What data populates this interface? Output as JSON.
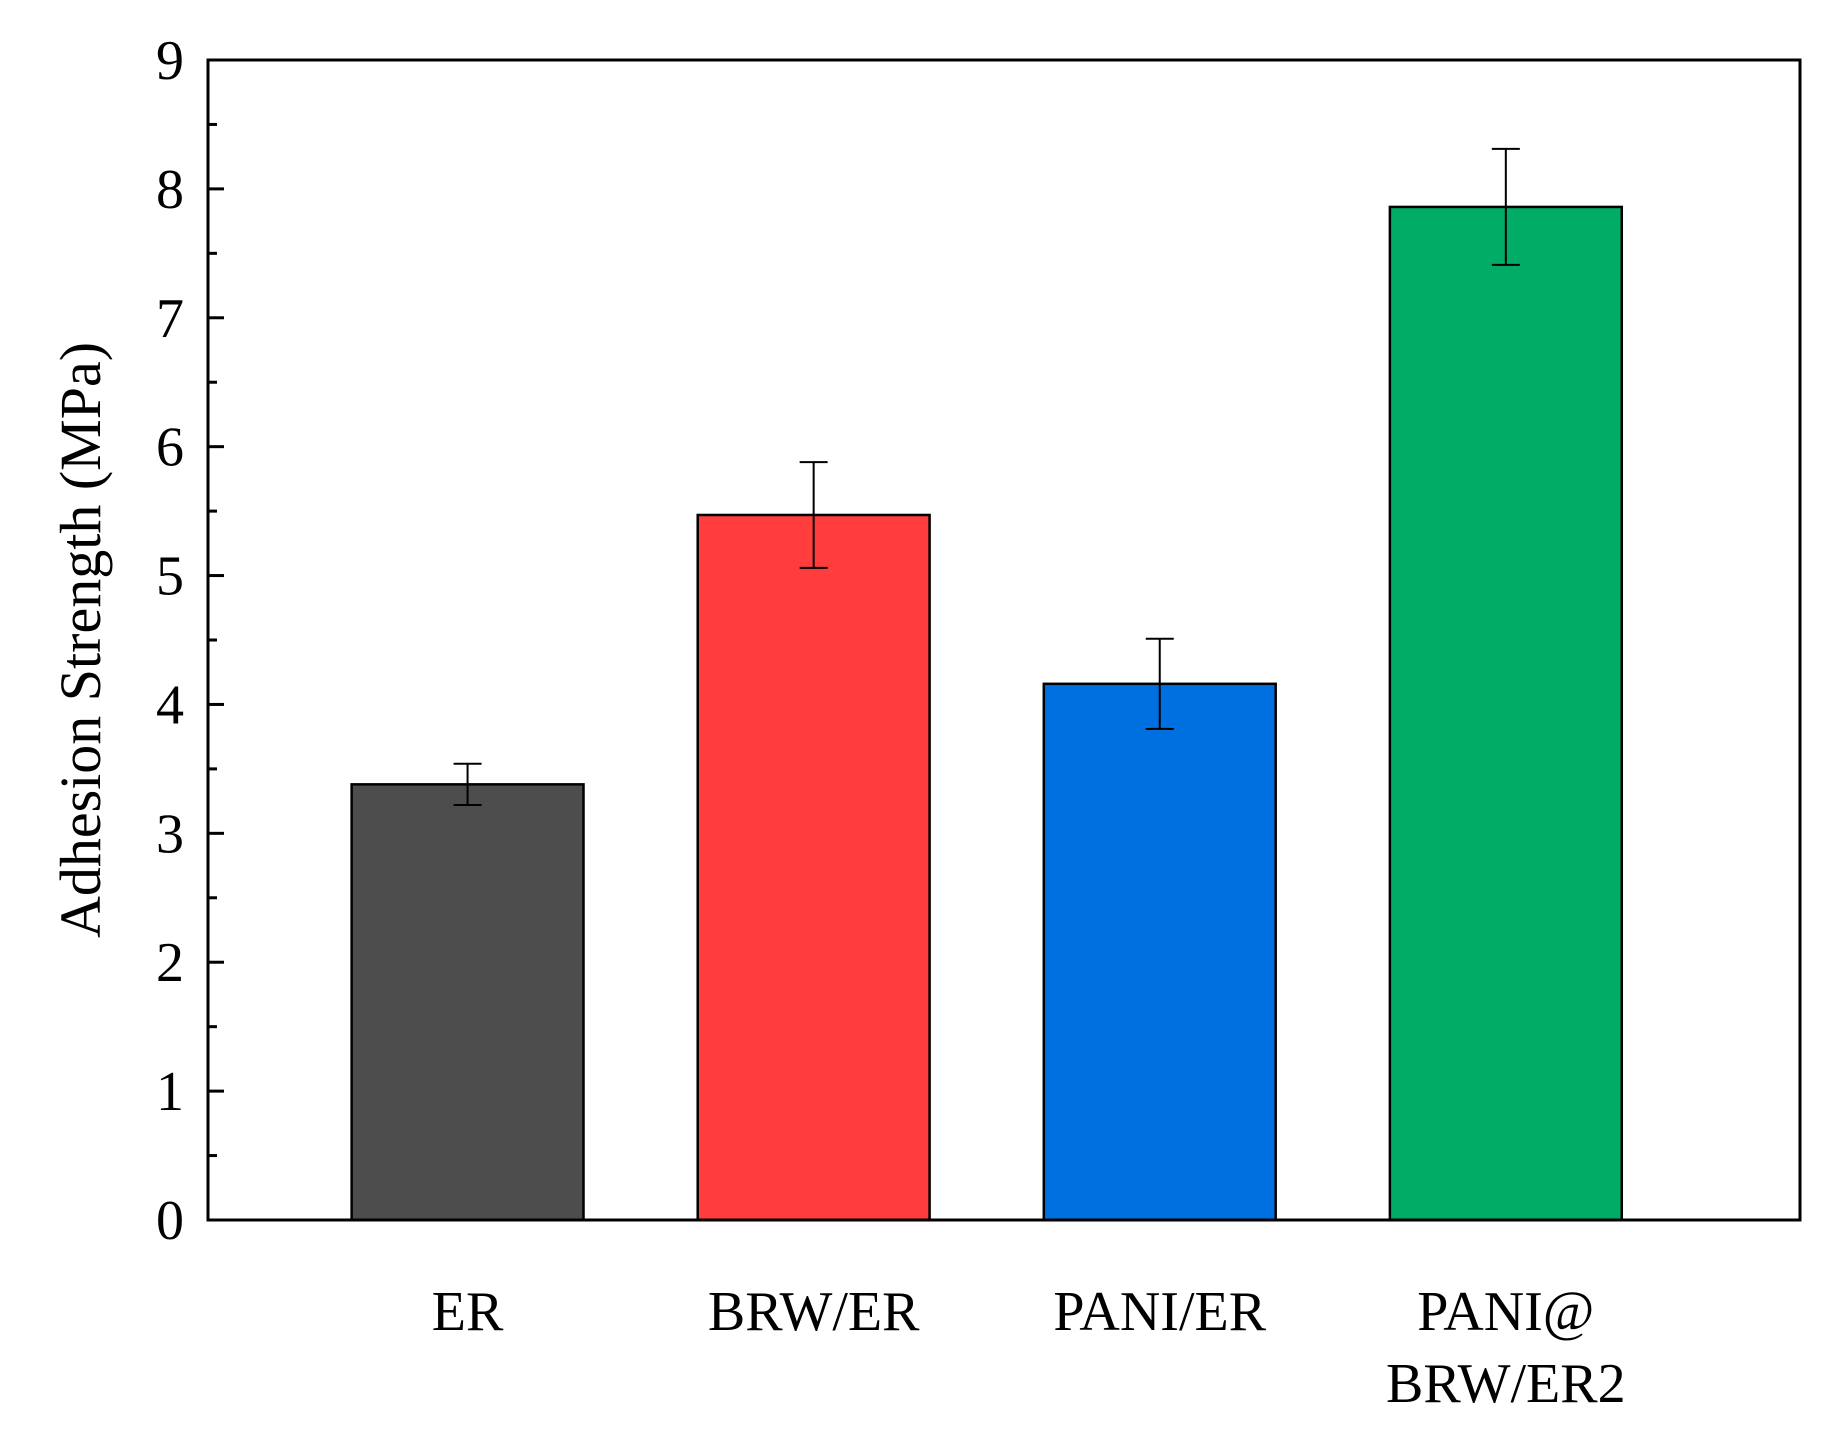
{
  "chart_data": {
    "type": "bar",
    "title": "",
    "xlabel": "",
    "ylabel": "Adhesion Strength (MPa)",
    "ylim": [
      0,
      9
    ],
    "y_ticks": [
      "0",
      "1",
      "2",
      "3",
      "4",
      "5",
      "6",
      "7",
      "8",
      "9"
    ],
    "y_minor_step": 0.5,
    "grid": false,
    "legend": "none",
    "categories": [
      [
        "ER"
      ],
      [
        "BRW/ER"
      ],
      [
        "PANI/ER"
      ],
      [
        "PANI@",
        "BRW/ER2"
      ]
    ],
    "values": [
      3.38,
      5.47,
      4.16,
      7.86
    ],
    "errors": [
      0.16,
      0.41,
      0.35,
      0.45
    ],
    "colors": [
      "#4d4d4d",
      "#ff3d3d",
      "#0070e0",
      "#00ac66"
    ]
  }
}
